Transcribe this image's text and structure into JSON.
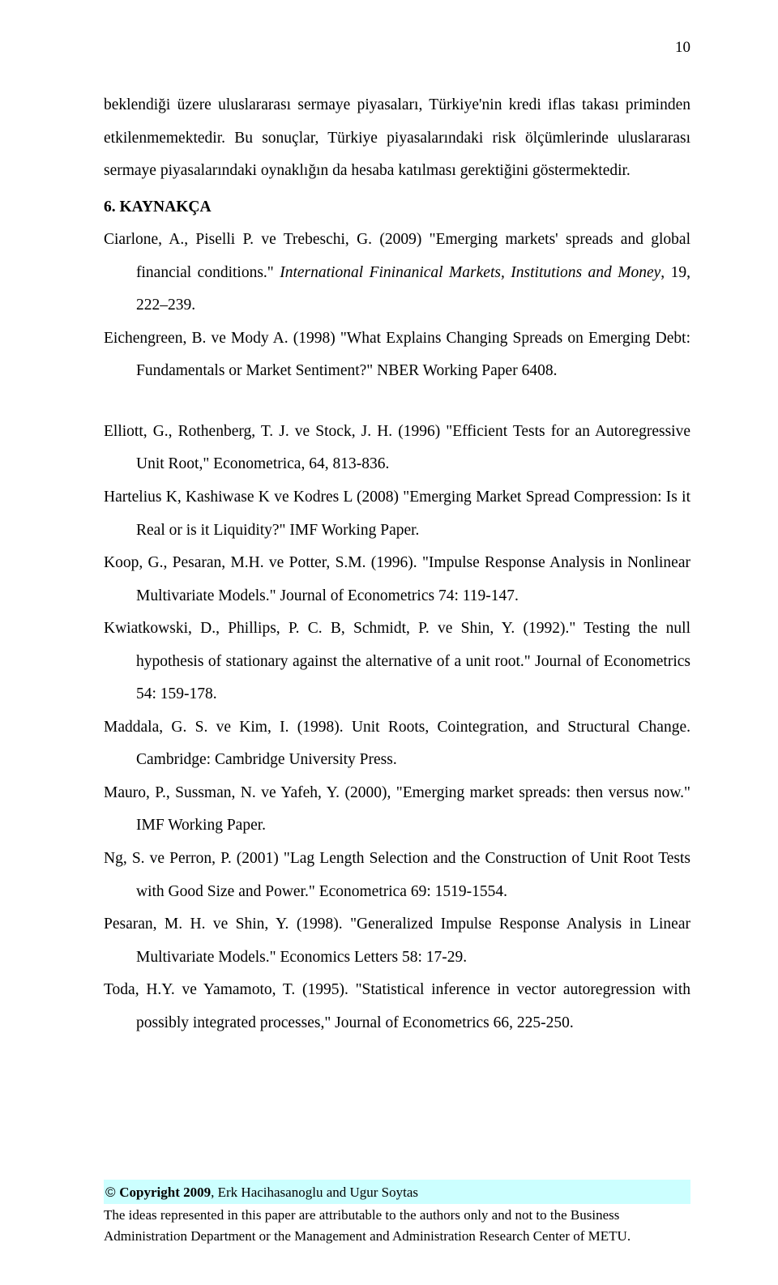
{
  "page_number": "10",
  "intro_paragraph": "beklendiği üzere uluslararası sermaye piyasaları, Türkiye'nin kredi iflas takası priminden etkilenmemektedir. Bu sonuçlar, Türkiye piyasalarındaki risk ölçümlerinde uluslararası sermaye piyasalarındaki oynaklığın da hesaba katılması gerektiğini göstermektedir.",
  "section_heading": "6. KAYNAKÇA",
  "references": [
    {
      "text": "Ciarlone, A., Piselli P. ve Trebeschi, G. (2009) \"Emerging markets' spreads and global financial conditions.\" ",
      "ital": "International Fininanical Markets, Institutions and Money",
      "tail": ", 19, 222–239."
    },
    {
      "text": "Eichengreen, B. ve Mody A. (1998) \"What Explains Changing Spreads on Emerging Debt: Fundamentals or Market Sentiment?\" NBER Working Paper 6408.",
      "ital": "",
      "tail": ""
    },
    {
      "spacer": true
    },
    {
      "text": "Elliott, G., Rothenberg, T. J. ve Stock, J. H. (1996) \"Efficient Tests for an Autoregressive Unit Root,\" Econometrica, 64, 813-836.",
      "ital": "",
      "tail": ""
    },
    {
      "text": "Hartelius K, Kashiwase K ve Kodres L (2008) \"Emerging Market Spread Compression: Is it Real or is it Liquidity?\"  IMF Working Paper.",
      "ital": "",
      "tail": ""
    },
    {
      "text": "Koop, G., Pesaran, M.H. ve Potter, S.M. (1996). \"Impulse Response Analysis in Nonlinear Multivariate Models.\" Journal of Econometrics 74: 119-147.",
      "ital": "",
      "tail": ""
    },
    {
      "text": "Kwiatkowski, D., Phillips, P. C. B, Schmidt, P.  ve Shin, Y. (1992).\" Testing the null hypothesis of stationary against the alternative of a unit root.\" Journal of Econometrics 54: 159-178.",
      "ital": "",
      "tail": ""
    },
    {
      "text": "Maddala, G. S. ve Kim, I. (1998). Unit Roots, Cointegration, and Structural Change. Cambridge: Cambridge University Press.",
      "ital": "",
      "tail": ""
    },
    {
      "text": "Mauro, P., Sussman, N. ve Yafeh, Y. (2000), \"Emerging market spreads: then versus now.\" IMF Working Paper.",
      "ital": "",
      "tail": ""
    },
    {
      "text": "Ng, S. ve Perron, P. (2001) \"Lag Length Selection and the Construction of Unit Root Tests with Good Size and Power.\" Econometrica 69: 1519-1554.",
      "ital": "",
      "tail": ""
    },
    {
      "text": "Pesaran, M. H. ve Shin, Y. (1998). \"Generalized Impulse Response Analysis in Linear Multivariate Models.\" Economics Letters 58: 17-29.",
      "ital": "",
      "tail": ""
    },
    {
      "text": "Toda, H.Y. ve Yamamoto, T. (1995). \"Statistical inference in vector autoregression with possibly integrated processes,\" Journal of Econometrics 66, 225-250.",
      "ital": "",
      "tail": ""
    }
  ],
  "footer": {
    "copyright_prefix": "© ",
    "copyright_bold": "Copyright  2009",
    "copyright_rest": ", Erk Hacihasanoglu and Ugur Soytas",
    "line2": "The ideas represented in this paper are attributable to the authors only and not to the Business Administration Department or the Management and Administration Research Center of METU."
  }
}
